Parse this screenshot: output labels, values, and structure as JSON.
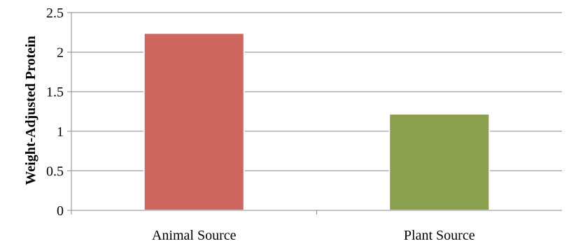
{
  "chart_data": {
    "type": "bar",
    "title": "",
    "xlabel": "",
    "ylabel": "Weight-Adjusted Protein",
    "categories": [
      "Animal Source",
      "Plant Source"
    ],
    "values": [
      2.24,
      1.22
    ],
    "bar_colors": [
      "#CD665E",
      "#8BA04F"
    ],
    "ylim": [
      0,
      2.5
    ],
    "yticks": [
      "0",
      "0.5",
      "1",
      "1.5",
      "2",
      "2.5"
    ],
    "grid": true,
    "legend": "none"
  }
}
